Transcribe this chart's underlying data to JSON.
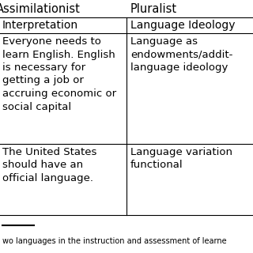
{
  "title_left": "Assimilationist",
  "title_right": "Pluralist",
  "col1_header": "Interpretation",
  "col2_header": "Language Ideology",
  "rows": [
    {
      "col1": "Everyone needs to\nlearn English. English\nis necessary for\ngetting a job or\naccruing economic or\nsocial capital",
      "col2": "Language as\nendowments/addit-\nlanguage ideology"
    },
    {
      "col1": "The United States\nshould have an\nofficial language.",
      "col2": "Language variation\nfunctional"
    }
  ],
  "bg_color": "#ffffff",
  "line_color": "#000000",
  "text_color": "#000000",
  "font_size": 9.5,
  "header_font_size": 10.0,
  "title_font_size": 10.5,
  "footer_text": "wo languages in the instruction and assessment of learne",
  "footer_font_size": 7.0
}
